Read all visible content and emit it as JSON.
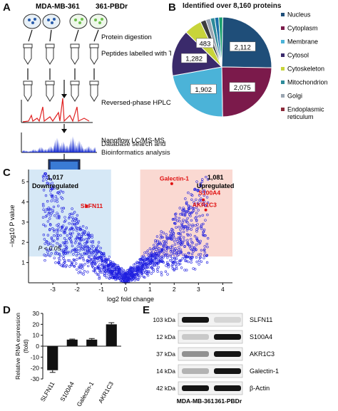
{
  "panels": {
    "A": {
      "letter": "A",
      "cell_lines": [
        "MDA-MB-361",
        "361-PBDr"
      ],
      "steps": [
        "Protein digestion",
        "Peptides labelled with TMT",
        "Reversed-phase HPLC fractionation",
        "Nanoflow LC/MS-MS",
        "Database search and Bioinformatics analysis"
      ]
    },
    "B": {
      "letter": "B",
      "title": "Identified over 8,160 proteins"
    },
    "C": {
      "letter": "C",
      "down_count": "1,017",
      "down_label": "Downregulated",
      "up_count": "1,081",
      "up_label": "Upregulated",
      "p_label": "P < 0.05",
      "genes": [
        "Galectin-1",
        "S100A4",
        "AKR1C3",
        "SLFN11"
      ]
    },
    "D": {
      "letter": "D"
    },
    "E": {
      "letter": "E",
      "bands": [
        {
          "kda": "103 kDa",
          "protein": "SLFN11",
          "lane1": 0.95,
          "lane2": 0.1
        },
        {
          "kda": "12 kDa",
          "protein": "S100A4",
          "lane1": 0.15,
          "lane2": 0.95
        },
        {
          "kda": "37 kDa",
          "protein": "AKR1C3",
          "lane1": 0.4,
          "lane2": 0.95
        },
        {
          "kda": "14 kDa",
          "protein": "Galectin-1",
          "lane1": 0.25,
          "lane2": 0.95
        },
        {
          "kda": "42 kDa",
          "protein": "β-Actin",
          "lane1": 0.95,
          "lane2": 0.95
        }
      ],
      "lane_labels": [
        "MDA-MB-361",
        "361-PBDr"
      ]
    }
  },
  "chart_data": [
    {
      "type": "pie",
      "title": "Identified over 8,160 proteins",
      "legend_placement": "right",
      "categories": [
        "Nucleus",
        "Cytoplasm",
        "Membrane",
        "Cytosol",
        "Cytoskeleton",
        "Mitochondrion",
        "Golgi",
        "Endoplasmic reticulum"
      ],
      "colors": [
        "#1f4e79",
        "#7b1a4b",
        "#4bb3d8",
        "#3a2a6b",
        "#c8d43a",
        "#2e8b9a",
        "#9aa5b1",
        "#8b2a3a"
      ],
      "slices": [
        {
          "label": "Nucleus",
          "value": 2112,
          "color": "#1f4e79"
        },
        {
          "label": "Cytoplasm",
          "value": 2075,
          "color": "#7b1a4b"
        },
        {
          "label": "Membrane",
          "value": 1902,
          "color": "#4bb3d8"
        },
        {
          "label": "Cytosol",
          "value": 1282,
          "color": "#3a2a6b"
        },
        {
          "label": "Cytoskeleton",
          "value": 483,
          "color": "#c8d43a"
        },
        {
          "label": "",
          "value": 150,
          "color": "#3d3d3d"
        },
        {
          "label": "",
          "value": 130,
          "color": "#9aa5b1"
        },
        {
          "label": "",
          "value": 120,
          "color": "#2e8b9a"
        },
        {
          "label": "",
          "value": 110,
          "color": "#1a6fa8"
        },
        {
          "label": "",
          "value": 110,
          "color": "#1aa06e"
        }
      ],
      "data_labels": [
        "2,112",
        "2,075",
        "1,902",
        "1,282",
        "483"
      ]
    },
    {
      "type": "scatter",
      "xlabel": "log2 fold change",
      "ylabel": "−log10 P value",
      "xlim": [
        -4,
        4.4
      ],
      "ylim": [
        0,
        5.6
      ],
      "xticks": [
        -3,
        -2,
        -1,
        0,
        1,
        2,
        3,
        4
      ],
      "yticks": [
        1,
        2,
        3,
        4,
        5
      ],
      "highlighted": [
        {
          "label": "Galectin-1",
          "x": 1.9,
          "y": 4.9
        },
        {
          "label": "S100A4",
          "x": 3.2,
          "y": 4.1
        },
        {
          "label": "AKR1C3",
          "x": 3.3,
          "y": 3.6
        },
        {
          "label": "SLFN11",
          "x": -1.6,
          "y": 3.8
        }
      ],
      "regions": {
        "down": {
          "xlim": [
            -4,
            -0.6
          ],
          "ylim": [
            1.3,
            5.6
          ]
        },
        "up": {
          "xlim": [
            0.6,
            4.4
          ],
          "ylim": [
            1.3,
            5.6
          ]
        }
      },
      "point_color": "#2020e0"
    },
    {
      "type": "bar",
      "ylabel": "Relative RNA expression (fold)",
      "categories": [
        "SLFN11",
        "S100A4",
        "Galectin-1",
        "AKR1C3"
      ],
      "values": [
        -22,
        6,
        6,
        20
      ],
      "errors": [
        2,
        0.5,
        1,
        1.5
      ],
      "ylim": [
        -30,
        30
      ],
      "yticks": [
        -30,
        -20,
        -10,
        0,
        10,
        20,
        30
      ]
    }
  ]
}
